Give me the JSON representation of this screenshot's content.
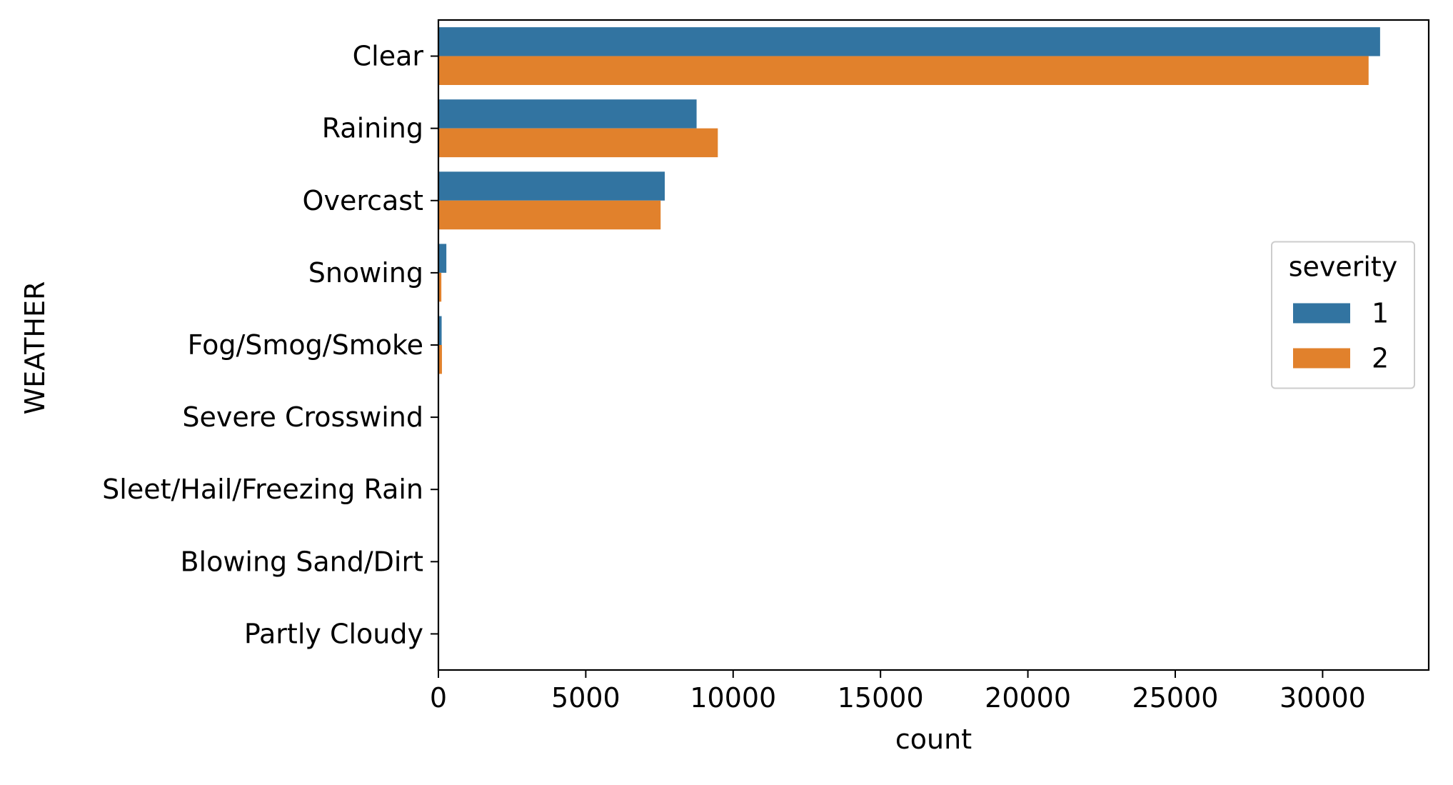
{
  "chart_data": {
    "type": "bar",
    "orientation": "horizontal",
    "title": "",
    "xlabel": "count",
    "ylabel": "WEATHER",
    "xlim": [
      0,
      33600
    ],
    "xticks": [
      0,
      5000,
      10000,
      15000,
      20000,
      25000,
      30000
    ],
    "xtick_labels": [
      "0",
      "5000",
      "10000",
      "15000",
      "20000",
      "25000",
      "30000"
    ],
    "grid": false,
    "categories": [
      "Clear",
      "Raining",
      "Overcast",
      "Snowing",
      "Fog/Smog/Smoke",
      "Severe Crosswind",
      "Sleet/Hail/Freezing Rain",
      "Blowing Sand/Dirt",
      "Partly Cloudy"
    ],
    "series": [
      {
        "name": "1",
        "color": "#3274a1",
        "values": [
          31950,
          8760,
          7680,
          270,
          110,
          10,
          5,
          3,
          0
        ]
      },
      {
        "name": "2",
        "color": "#e1812c",
        "values": [
          31560,
          9480,
          7540,
          100,
          120,
          8,
          10,
          3,
          3
        ]
      }
    ],
    "legend": {
      "title": "severity",
      "placement": "center-right"
    }
  }
}
